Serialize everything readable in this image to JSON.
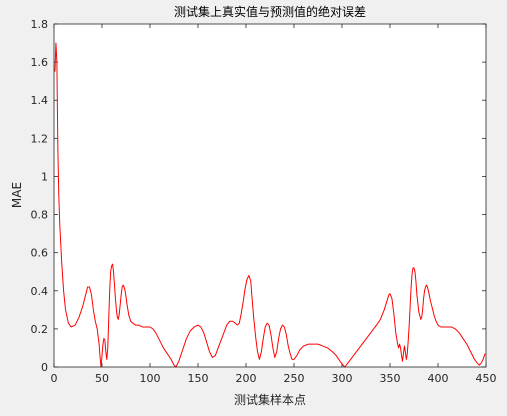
{
  "chart_data": {
    "type": "line",
    "title": "测试集上真实值与预测值的绝对误差",
    "xlabel": "测试集样本点",
    "ylabel": "MAE",
    "xlim": [
      0,
      450
    ],
    "ylim": [
      0,
      1.8
    ],
    "x_ticks": [
      "0",
      "50",
      "100",
      "150",
      "200",
      "250",
      "300",
      "350",
      "400",
      "450"
    ],
    "y_ticks": [
      "0",
      "0.2",
      "0.4",
      "0.6",
      "0.8",
      "1",
      "1.2",
      "1.4",
      "1.6",
      "1.8"
    ],
    "grid": false,
    "series": [
      {
        "color": "#ff0000",
        "points": [
          [
            1,
            1.55
          ],
          [
            2,
            1.7
          ],
          [
            3,
            1.6
          ],
          [
            4,
            1.15
          ],
          [
            5,
            0.9
          ],
          [
            6,
            0.75
          ],
          [
            8,
            0.55
          ],
          [
            10,
            0.4
          ],
          [
            12,
            0.3
          ],
          [
            15,
            0.23
          ],
          [
            18,
            0.21
          ],
          [
            22,
            0.22
          ],
          [
            26,
            0.26
          ],
          [
            30,
            0.32
          ],
          [
            33,
            0.38
          ],
          [
            35,
            0.42
          ],
          [
            37,
            0.42
          ],
          [
            39,
            0.38
          ],
          [
            41,
            0.3
          ],
          [
            43,
            0.24
          ],
          [
            45,
            0.2
          ],
          [
            47,
            0.12
          ],
          [
            48,
            0.05
          ],
          [
            49,
            0.0
          ],
          [
            50,
            0.06
          ],
          [
            51,
            0.12
          ],
          [
            52,
            0.15
          ],
          [
            53,
            0.14
          ],
          [
            54,
            0.08
          ],
          [
            55,
            0.04
          ],
          [
            56,
            0.1
          ],
          [
            57,
            0.25
          ],
          [
            58,
            0.4
          ],
          [
            59,
            0.5
          ],
          [
            60,
            0.53
          ],
          [
            61,
            0.54
          ],
          [
            62,
            0.5
          ],
          [
            63,
            0.43
          ],
          [
            64,
            0.36
          ],
          [
            65,
            0.3
          ],
          [
            66,
            0.26
          ],
          [
            67,
            0.25
          ],
          [
            68,
            0.28
          ],
          [
            69,
            0.33
          ],
          [
            70,
            0.38
          ],
          [
            71,
            0.42
          ],
          [
            72,
            0.43
          ],
          [
            73,
            0.42
          ],
          [
            74,
            0.4
          ],
          [
            75,
            0.37
          ],
          [
            76,
            0.33
          ],
          [
            77,
            0.3
          ],
          [
            78,
            0.27
          ],
          [
            80,
            0.24
          ],
          [
            82,
            0.23
          ],
          [
            85,
            0.22
          ],
          [
            88,
            0.22
          ],
          [
            92,
            0.21
          ],
          [
            96,
            0.21
          ],
          [
            100,
            0.21
          ],
          [
            103,
            0.2
          ],
          [
            106,
            0.18
          ],
          [
            110,
            0.14
          ],
          [
            114,
            0.1
          ],
          [
            118,
            0.07
          ],
          [
            122,
            0.04
          ],
          [
            125,
            0.01
          ],
          [
            127,
            0.0
          ],
          [
            130,
            0.03
          ],
          [
            134,
            0.09
          ],
          [
            138,
            0.15
          ],
          [
            142,
            0.19
          ],
          [
            146,
            0.21
          ],
          [
            150,
            0.22
          ],
          [
            153,
            0.21
          ],
          [
            156,
            0.18
          ],
          [
            159,
            0.13
          ],
          [
            162,
            0.08
          ],
          [
            165,
            0.05
          ],
          [
            168,
            0.06
          ],
          [
            171,
            0.1
          ],
          [
            174,
            0.14
          ],
          [
            177,
            0.18
          ],
          [
            180,
            0.22
          ],
          [
            183,
            0.24
          ],
          [
            186,
            0.24
          ],
          [
            189,
            0.23
          ],
          [
            191,
            0.22
          ],
          [
            193,
            0.23
          ],
          [
            195,
            0.28
          ],
          [
            197,
            0.34
          ],
          [
            199,
            0.41
          ],
          [
            201,
            0.46
          ],
          [
            203,
            0.48
          ],
          [
            205,
            0.45
          ],
          [
            206,
            0.38
          ],
          [
            208,
            0.26
          ],
          [
            210,
            0.16
          ],
          [
            212,
            0.08
          ],
          [
            214,
            0.04
          ],
          [
            216,
            0.08
          ],
          [
            218,
            0.15
          ],
          [
            220,
            0.21
          ],
          [
            222,
            0.23
          ],
          [
            224,
            0.22
          ],
          [
            226,
            0.17
          ],
          [
            228,
            0.1
          ],
          [
            230,
            0.05
          ],
          [
            232,
            0.08
          ],
          [
            234,
            0.15
          ],
          [
            236,
            0.2
          ],
          [
            238,
            0.22
          ],
          [
            240,
            0.21
          ],
          [
            242,
            0.17
          ],
          [
            244,
            0.11
          ],
          [
            246,
            0.07
          ],
          [
            248,
            0.04
          ],
          [
            250,
            0.04
          ],
          [
            253,
            0.06
          ],
          [
            256,
            0.09
          ],
          [
            260,
            0.11
          ],
          [
            265,
            0.12
          ],
          [
            270,
            0.12
          ],
          [
            275,
            0.12
          ],
          [
            280,
            0.11
          ],
          [
            285,
            0.1
          ],
          [
            290,
            0.08
          ],
          [
            294,
            0.06
          ],
          [
            298,
            0.03
          ],
          [
            301,
            0.01
          ],
          [
            303,
            0.0
          ],
          [
            306,
            0.02
          ],
          [
            312,
            0.06
          ],
          [
            318,
            0.1
          ],
          [
            324,
            0.14
          ],
          [
            330,
            0.18
          ],
          [
            336,
            0.22
          ],
          [
            340,
            0.25
          ],
          [
            344,
            0.3
          ],
          [
            347,
            0.35
          ],
          [
            349,
            0.38
          ],
          [
            350,
            0.385
          ],
          [
            352,
            0.36
          ],
          [
            354,
            0.28
          ],
          [
            356,
            0.18
          ],
          [
            358,
            0.12
          ],
          [
            359,
            0.1
          ],
          [
            360,
            0.12
          ],
          [
            361,
            0.1
          ],
          [
            362,
            0.06
          ],
          [
            363,
            0.03
          ],
          [
            364,
            0.07
          ],
          [
            365,
            0.11
          ],
          [
            366,
            0.08
          ],
          [
            367,
            0.04
          ],
          [
            368,
            0.07
          ],
          [
            369,
            0.14
          ],
          [
            370,
            0.22
          ],
          [
            371,
            0.32
          ],
          [
            372,
            0.42
          ],
          [
            373,
            0.49
          ],
          [
            374,
            0.52
          ],
          [
            375,
            0.52
          ],
          [
            376,
            0.5
          ],
          [
            377,
            0.45
          ],
          [
            378,
            0.38
          ],
          [
            380,
            0.29
          ],
          [
            382,
            0.25
          ],
          [
            383,
            0.26
          ],
          [
            384,
            0.3
          ],
          [
            385,
            0.36
          ],
          [
            386,
            0.4
          ],
          [
            387,
            0.42
          ],
          [
            388,
            0.43
          ],
          [
            389,
            0.42
          ],
          [
            390,
            0.4
          ],
          [
            392,
            0.35
          ],
          [
            394,
            0.31
          ],
          [
            396,
            0.27
          ],
          [
            398,
            0.24
          ],
          [
            400,
            0.22
          ],
          [
            403,
            0.21
          ],
          [
            406,
            0.21
          ],
          [
            410,
            0.21
          ],
          [
            414,
            0.21
          ],
          [
            418,
            0.2
          ],
          [
            422,
            0.18
          ],
          [
            426,
            0.15
          ],
          [
            430,
            0.12
          ],
          [
            434,
            0.08
          ],
          [
            438,
            0.04
          ],
          [
            441,
            0.02
          ],
          [
            443,
            0.01
          ],
          [
            445,
            0.02
          ],
          [
            447,
            0.04
          ],
          [
            449,
            0.07
          ]
        ]
      }
    ]
  }
}
